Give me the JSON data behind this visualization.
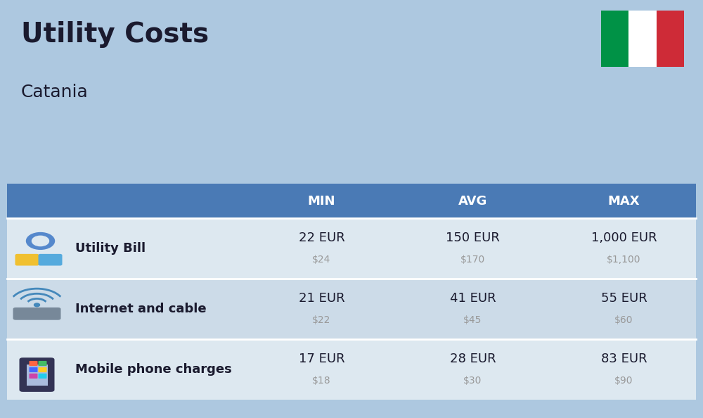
{
  "title": "Utility Costs",
  "subtitle": "Catania",
  "background_color": "#adc8e0",
  "table_header_color": "#4a7ab5",
  "table_header_text_color": "#ffffff",
  "row_colors": [
    "#dde8f0",
    "#ccdbe8"
  ],
  "col_headers": [
    "MIN",
    "AVG",
    "MAX"
  ],
  "rows": [
    {
      "label": "Utility Bill",
      "min_eur": "22 EUR",
      "min_usd": "$24",
      "avg_eur": "150 EUR",
      "avg_usd": "$170",
      "max_eur": "1,000 EUR",
      "max_usd": "$1,100"
    },
    {
      "label": "Internet and cable",
      "min_eur": "21 EUR",
      "min_usd": "$22",
      "avg_eur": "41 EUR",
      "avg_usd": "$45",
      "max_eur": "55 EUR",
      "max_usd": "$60"
    },
    {
      "label": "Mobile phone charges",
      "min_eur": "17 EUR",
      "min_usd": "$18",
      "avg_eur": "28 EUR",
      "avg_usd": "$30",
      "max_eur": "83 EUR",
      "max_usd": "$90"
    }
  ],
  "flag_colors": [
    "#009246",
    "#ffffff",
    "#ce2b37"
  ],
  "text_color_dark": "#1a1a2e",
  "text_color_usd": "#999999"
}
